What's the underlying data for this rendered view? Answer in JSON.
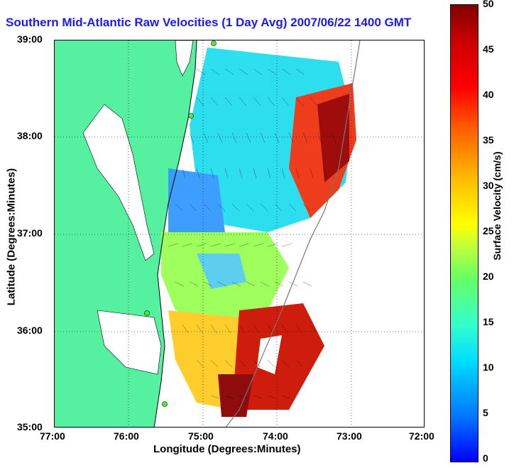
{
  "title": "Southern Mid-Atlantic Raw Velocities (1 Day Avg) 2007/06/22 1400 GMT",
  "map": {
    "xlabel": "Longitude (Degrees:Minutes)",
    "ylabel": "Latitude (Degrees:Minutes)",
    "x_ticks": [
      "77:00",
      "76:00",
      "75:00",
      "74:00",
      "73:00",
      "72:00"
    ],
    "y_ticks": [
      "39:00",
      "38:00",
      "37:00",
      "36:00",
      "35:00"
    ],
    "land_color": "#55f0a0",
    "grid": "dotted"
  },
  "colorbar": {
    "label": "Surface Velocity (cm/s)",
    "ticks": [
      "50",
      "45",
      "40",
      "35",
      "30",
      "25",
      "20",
      "15",
      "10",
      "5",
      "0"
    ],
    "range": [
      0,
      50
    ]
  }
}
